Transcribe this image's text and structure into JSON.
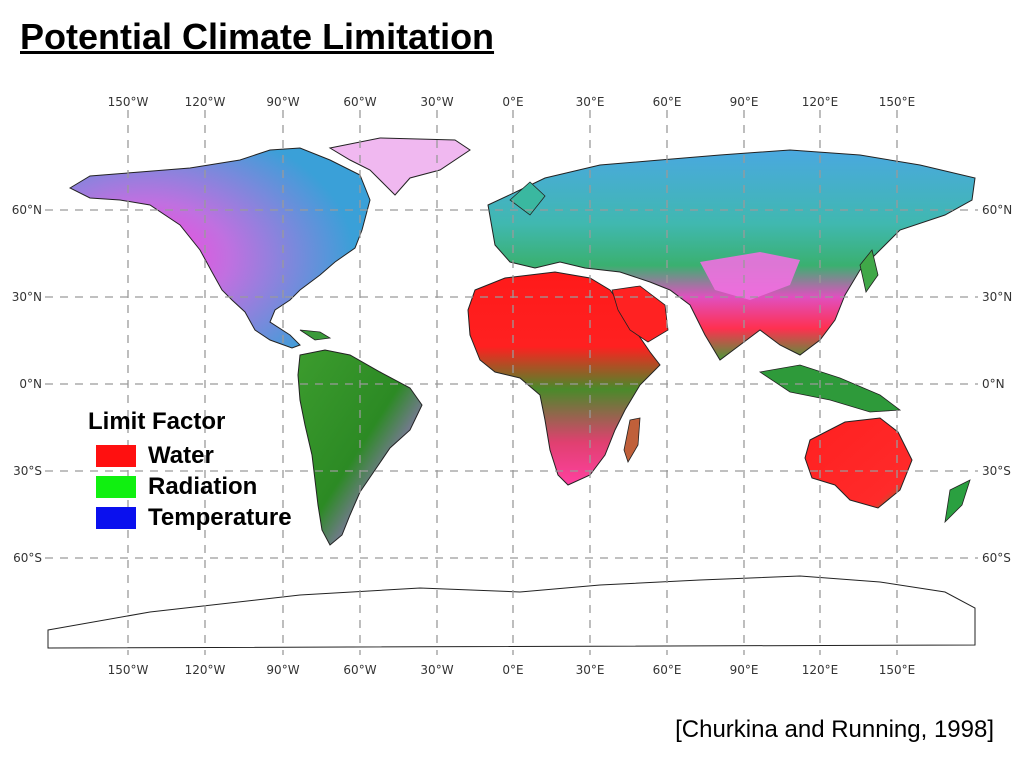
{
  "title": "Potential Climate Limitation",
  "citation": "[Churkina and Running, 1998]",
  "map": {
    "longitude_labels": [
      "150°W",
      "120°W",
      "90°W",
      "60°W",
      "30°W",
      "0°E",
      "30°E",
      "60°E",
      "90°E",
      "120°E",
      "150°E"
    ],
    "latitude_labels": [
      "60°N",
      "30°N",
      "0°N",
      "30°S",
      "60°S"
    ],
    "colors": {
      "water": "#ff1a1a",
      "radiation": "#1aee1a",
      "temperature": "#0a1aee",
      "water_radiation_mix": "#5c9a3a",
      "water_temperature_mix": "#ff3ad8",
      "radiation_temperature_mix": "#3ab0c8",
      "cold_mix": "#5aa0e0",
      "gridline": "#9a9a9a"
    }
  },
  "legend": {
    "title": "Limit Factor",
    "items": [
      {
        "label": "Water",
        "color": "#ff1010"
      },
      {
        "label": "Radiation",
        "color": "#10f010"
      },
      {
        "label": "Temperature",
        "color": "#0a10ee"
      }
    ]
  }
}
